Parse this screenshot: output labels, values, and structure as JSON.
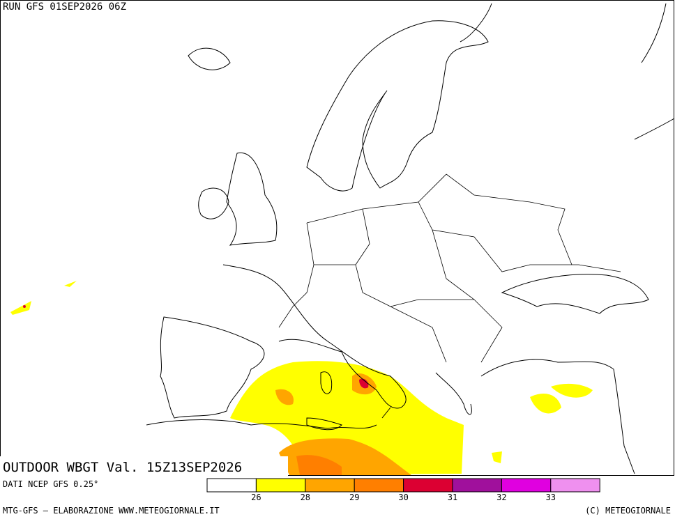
{
  "header": {
    "run": "RUN GFS 01SEP2026 06Z"
  },
  "map": {
    "title": "OUTDOOR WBGT Val. 15Z13SEP2026"
  },
  "source": "DATI NCEP GFS 0.25°",
  "legend": {
    "colors": [
      "#ffffff",
      "#ffff00",
      "#ffa500",
      "#ff7f00",
      "#dc0032",
      "#a0109c",
      "#e000e0",
      "#ef90ef"
    ],
    "labels": [
      26,
      28,
      29,
      30,
      31,
      32,
      33
    ]
  },
  "footer": {
    "left": "MTG-GFS — ELABORAZIONE WWW.METEOGIORNALE.IT",
    "right": "(C) METEOGIORNALE"
  }
}
